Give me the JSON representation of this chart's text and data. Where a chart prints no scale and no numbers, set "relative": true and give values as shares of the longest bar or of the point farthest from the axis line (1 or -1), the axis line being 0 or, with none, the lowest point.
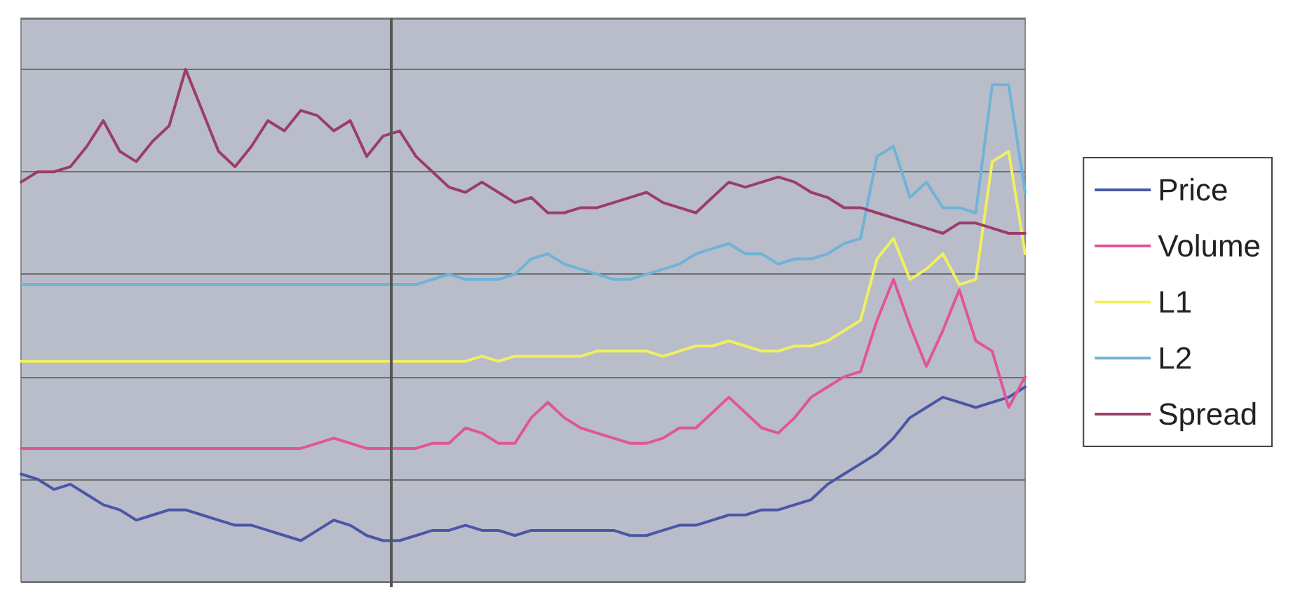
{
  "chart_data": {
    "type": "line",
    "relative": true,
    "grid": "y",
    "legend": "right",
    "line_style": "solid",
    "marker": "none",
    "categories": [
      null,
      null,
      null,
      null,
      null,
      null,
      null,
      null,
      null,
      null,
      null,
      null,
      null,
      null,
      null,
      null,
      null,
      null,
      null,
      null,
      null,
      null,
      null,
      null,
      null,
      null,
      null,
      null,
      null,
      null,
      null,
      null,
      null,
      null,
      null,
      null,
      null,
      null,
      null,
      null,
      null,
      null,
      null,
      null,
      null,
      null,
      null,
      null,
      null,
      null,
      null,
      null,
      null,
      null,
      null,
      null,
      null,
      null,
      null,
      null,
      null,
      null
    ],
    "series": [
      {
        "name": "Price",
        "color": "#4a56a6",
        "values": [
          0.21,
          0.2,
          0.18,
          0.19,
          0.17,
          0.15,
          0.14,
          0.12,
          0.13,
          0.14,
          0.14,
          0.13,
          0.12,
          0.11,
          0.11,
          0.1,
          0.09,
          0.08,
          0.1,
          0.12,
          0.11,
          0.09,
          0.08,
          0.08,
          0.09,
          0.1,
          0.1,
          0.11,
          0.1,
          0.1,
          0.09,
          0.1,
          0.1,
          0.1,
          0.1,
          0.1,
          0.1,
          0.09,
          0.09,
          0.1,
          0.11,
          0.11,
          0.12,
          0.13,
          0.13,
          0.14,
          0.14,
          0.15,
          0.16,
          0.19,
          0.21,
          0.23,
          0.25,
          0.28,
          0.32,
          0.34,
          0.36,
          0.35,
          0.34,
          0.35,
          0.36,
          0.38
        ]
      },
      {
        "name": "Volume",
        "color": "#e0559a",
        "values": [
          0.26,
          0.26,
          0.26,
          0.26,
          0.26,
          0.26,
          0.26,
          0.26,
          0.26,
          0.26,
          0.26,
          0.26,
          0.26,
          0.26,
          0.26,
          0.26,
          0.26,
          0.26,
          0.27,
          0.28,
          0.27,
          0.26,
          0.26,
          0.26,
          0.26,
          0.27,
          0.27,
          0.3,
          0.29,
          0.27,
          0.27,
          0.32,
          0.35,
          0.32,
          0.3,
          0.29,
          0.28,
          0.27,
          0.27,
          0.28,
          0.3,
          0.3,
          0.33,
          0.36,
          0.33,
          0.3,
          0.29,
          0.32,
          0.36,
          0.38,
          0.4,
          0.41,
          0.51,
          0.59,
          0.5,
          0.42,
          0.49,
          0.57,
          0.47,
          0.45,
          0.34,
          0.4
        ]
      },
      {
        "name": "L1",
        "color": "#f0f060",
        "values": [
          0.43,
          0.43,
          0.43,
          0.43,
          0.43,
          0.43,
          0.43,
          0.43,
          0.43,
          0.43,
          0.43,
          0.43,
          0.43,
          0.43,
          0.43,
          0.43,
          0.43,
          0.43,
          0.43,
          0.43,
          0.43,
          0.43,
          0.43,
          0.43,
          0.43,
          0.43,
          0.43,
          0.43,
          0.44,
          0.43,
          0.44,
          0.44,
          0.44,
          0.44,
          0.44,
          0.45,
          0.45,
          0.45,
          0.45,
          0.44,
          0.45,
          0.46,
          0.46,
          0.47,
          0.46,
          0.45,
          0.45,
          0.46,
          0.46,
          0.47,
          0.49,
          0.51,
          0.63,
          0.67,
          0.59,
          0.61,
          0.64,
          0.58,
          0.59,
          0.82,
          0.84,
          0.64
        ]
      },
      {
        "name": "L2",
        "color": "#6fb3d6",
        "values": [
          0.58,
          0.58,
          0.58,
          0.58,
          0.58,
          0.58,
          0.58,
          0.58,
          0.58,
          0.58,
          0.58,
          0.58,
          0.58,
          0.58,
          0.58,
          0.58,
          0.58,
          0.58,
          0.58,
          0.58,
          0.58,
          0.58,
          0.58,
          0.58,
          0.58,
          0.59,
          0.6,
          0.59,
          0.59,
          0.59,
          0.6,
          0.63,
          0.64,
          0.62,
          0.61,
          0.6,
          0.59,
          0.59,
          0.6,
          0.61,
          0.62,
          0.64,
          0.65,
          0.66,
          0.64,
          0.64,
          0.62,
          0.63,
          0.63,
          0.64,
          0.66,
          0.67,
          0.83,
          0.85,
          0.75,
          0.78,
          0.73,
          0.73,
          0.72,
          0.97,
          0.97,
          0.76
        ]
      },
      {
        "name": "Spread",
        "color": "#9b3d6b",
        "values": [
          0.78,
          0.8,
          0.8,
          0.81,
          0.85,
          0.9,
          0.84,
          0.82,
          0.86,
          0.89,
          1,
          0.92,
          0.84,
          0.81,
          0.85,
          0.9,
          0.88,
          0.92,
          0.91,
          0.88,
          0.9,
          0.83,
          0.87,
          0.88,
          0.83,
          0.8,
          0.77,
          0.76,
          0.78,
          0.76,
          0.74,
          0.75,
          0.72,
          0.72,
          0.73,
          0.73,
          0.74,
          0.75,
          0.76,
          0.74,
          0.73,
          0.72,
          0.75,
          0.78,
          0.77,
          0.78,
          0.79,
          0.78,
          0.76,
          0.75,
          0.73,
          0.73,
          0.72,
          0.71,
          0.7,
          0.69,
          0.68,
          0.7,
          0.7,
          0.69,
          0.68,
          0.68
        ]
      }
    ]
  }
}
